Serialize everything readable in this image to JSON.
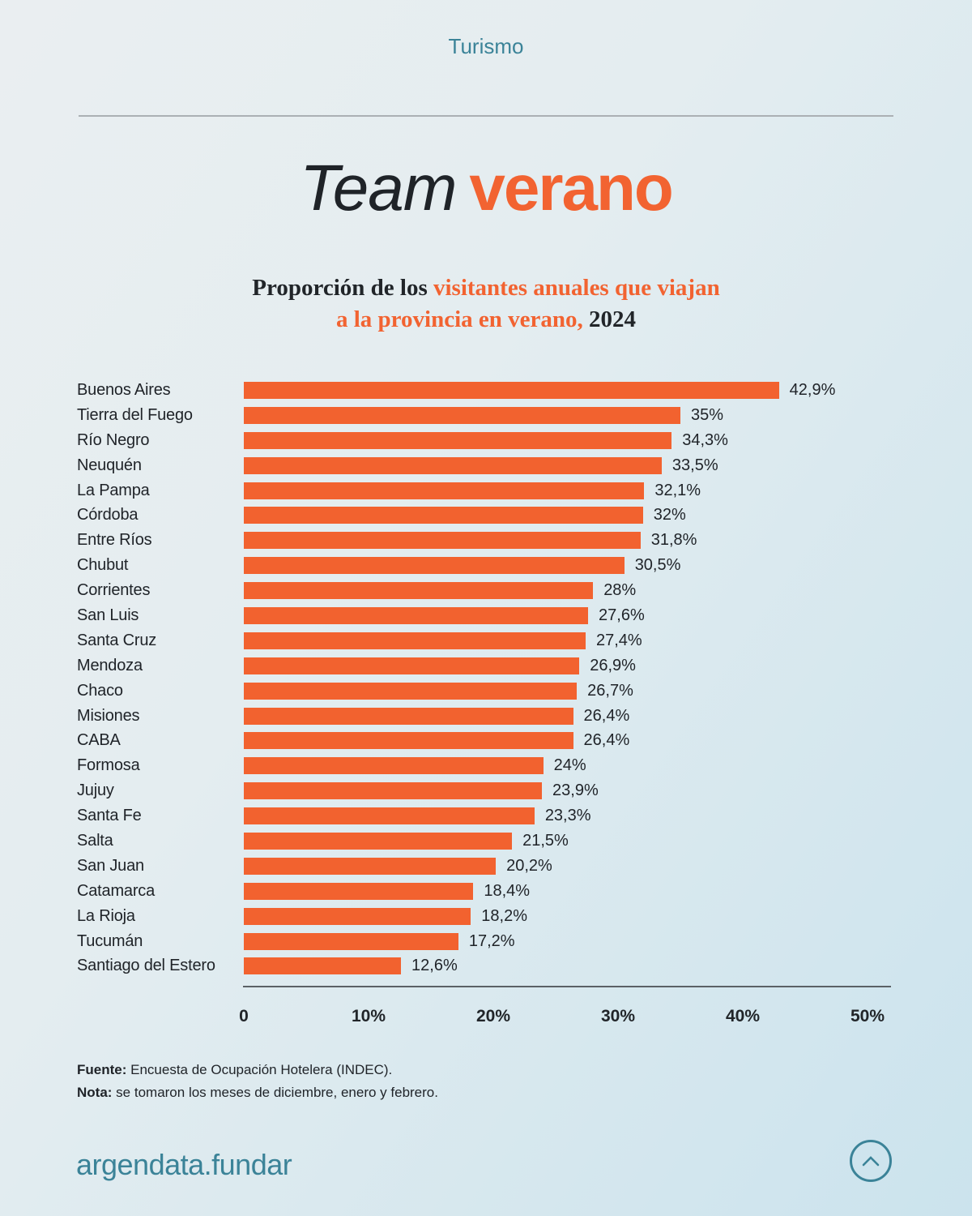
{
  "header": {
    "category": "Turismo",
    "title_team": "Team",
    "title_verano": "verano",
    "subtitle_prefix": "Proporción de los ",
    "subtitle_highlight_line1": "visitantes anuales que viajan",
    "subtitle_highlight_line2": "a la provincia en verano,",
    "subtitle_suffix": " 2024"
  },
  "chart_data": {
    "type": "bar",
    "orientation": "horizontal",
    "title": "Team verano",
    "subtitle": "Proporción de los visitantes anuales que viajan a la provincia en verano, 2024",
    "categories": [
      "Buenos Aires",
      "Tierra del Fuego",
      "Río Negro",
      "Neuquén",
      "La Pampa",
      "Córdoba",
      "Entre Ríos",
      "Chubut",
      "Corrientes",
      "San Luis",
      "Santa Cruz",
      "Mendoza",
      "Chaco",
      "Misiones",
      "CABA",
      "Formosa",
      "Jujuy",
      "Santa Fe",
      "Salta",
      "San Juan",
      "Catamarca",
      "La Rioja",
      "Tucumán",
      "Santiago del Estero"
    ],
    "values": [
      42.9,
      35,
      34.3,
      33.5,
      32.1,
      32,
      31.8,
      30.5,
      28,
      27.6,
      27.4,
      26.9,
      26.7,
      26.4,
      26.4,
      24,
      23.9,
      23.3,
      21.5,
      20.2,
      18.4,
      18.2,
      17.2,
      12.6
    ],
    "value_labels": [
      "42,9%",
      "35%",
      "34,3%",
      "33,5%",
      "32,1%",
      "32%",
      "31,8%",
      "30,5%",
      "28%",
      "27,6%",
      "27,4%",
      "26,9%",
      "26,7%",
      "26,4%",
      "26,4%",
      "24%",
      "23,9%",
      "23,3%",
      "21,5%",
      "20,2%",
      "18,4%",
      "18,2%",
      "17,2%",
      "12,6%"
    ],
    "xlim": [
      0,
      50
    ],
    "x_ticks": [
      "0",
      "10%",
      "20%",
      "30%",
      "40%",
      "50%"
    ],
    "grid": false,
    "legend": false,
    "bar_color": "#f2622f"
  },
  "footer": {
    "fuente_label": "Fuente:",
    "fuente_text": " Encuesta de Ocupación Hotelera (INDEC).",
    "nota_label": "Nota:",
    "nota_text": " se tomaron los meses de diciembre, enero y febrero."
  },
  "brand": {
    "wordmark": "argendata.fundar",
    "scroll_top_icon": "chevron-up-icon"
  },
  "colors": {
    "accent_orange": "#f2622f",
    "brand_teal": "#3b8398",
    "text_dark": "#1f2328",
    "background_top": "#eaeef1",
    "background_bottom": "#cbe3ed"
  }
}
